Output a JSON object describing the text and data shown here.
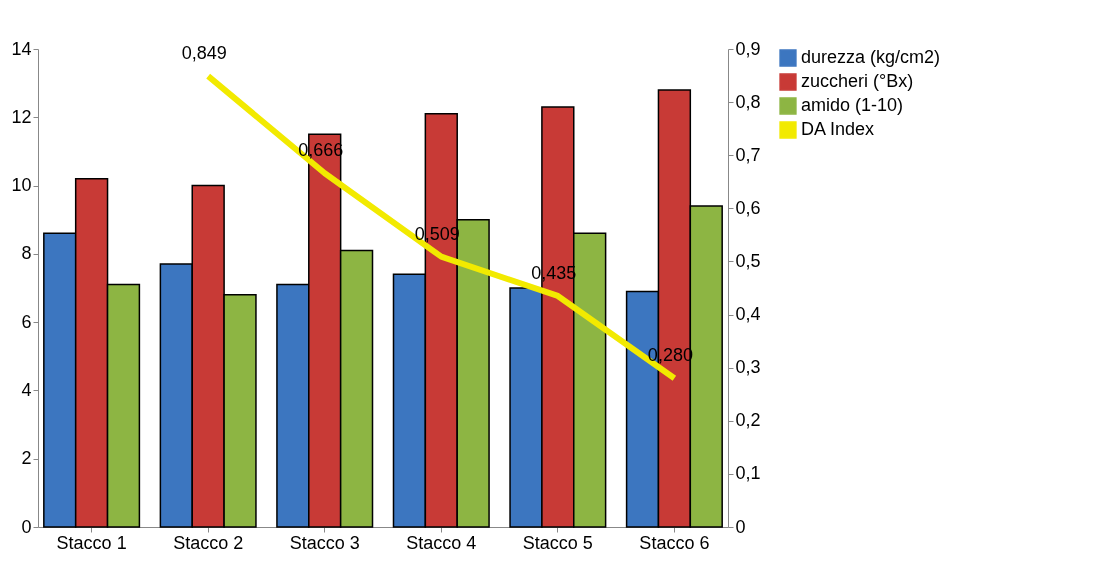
{
  "chart_data": {
    "type": "bar",
    "categories": [
      "Stacco 1",
      "Stacco 2",
      "Stacco 3",
      "Stacco 4",
      "Stacco 5",
      "Stacco 6"
    ],
    "series": [
      {
        "name": "durezza (kg/cm2)",
        "color": "#3c76c0",
        "values": [
          8.6,
          7.7,
          7.1,
          7.4,
          7.0,
          6.9
        ]
      },
      {
        "name": "zuccheri (°Bx)",
        "color": "#c83a36",
        "values": [
          10.2,
          10.0,
          11.5,
          12.1,
          12.3,
          12.8
        ]
      },
      {
        "name": "amido (1-10)",
        "color": "#8db543",
        "values": [
          7.1,
          6.8,
          8.1,
          9.0,
          8.6,
          9.4
        ]
      },
      {
        "name": "DA Index",
        "type": "line",
        "axis": "y2",
        "color": "#f2ea00",
        "values": [
          null,
          0.849,
          0.666,
          0.509,
          0.435,
          0.28
        ],
        "value_labels": [
          null,
          "0,849",
          "0,666",
          "0,509",
          "0,435",
          "0,280"
        ]
      }
    ],
    "ylim": [
      0,
      14
    ],
    "yticks": [
      0,
      2,
      4,
      6,
      8,
      10,
      12,
      14
    ],
    "y2lim": [
      0,
      0.9
    ],
    "y2ticks": [
      0,
      {
        "value": 0.1,
        "label": "0,1"
      },
      {
        "value": 0.2,
        "label": "0,2"
      },
      {
        "value": 0.3,
        "label": "0,3"
      },
      {
        "value": 0.4,
        "label": "0,4"
      },
      {
        "value": 0.5,
        "label": "0,5"
      },
      {
        "value": 0.6,
        "label": "0,6"
      },
      {
        "value": 0.7,
        "label": "0,7"
      },
      {
        "value": 0.8,
        "label": "0,8"
      },
      {
        "value": 0.9,
        "label": "0,9"
      }
    ],
    "grid": false,
    "legend": "right",
    "marker": "none",
    "line_style": "solid"
  }
}
